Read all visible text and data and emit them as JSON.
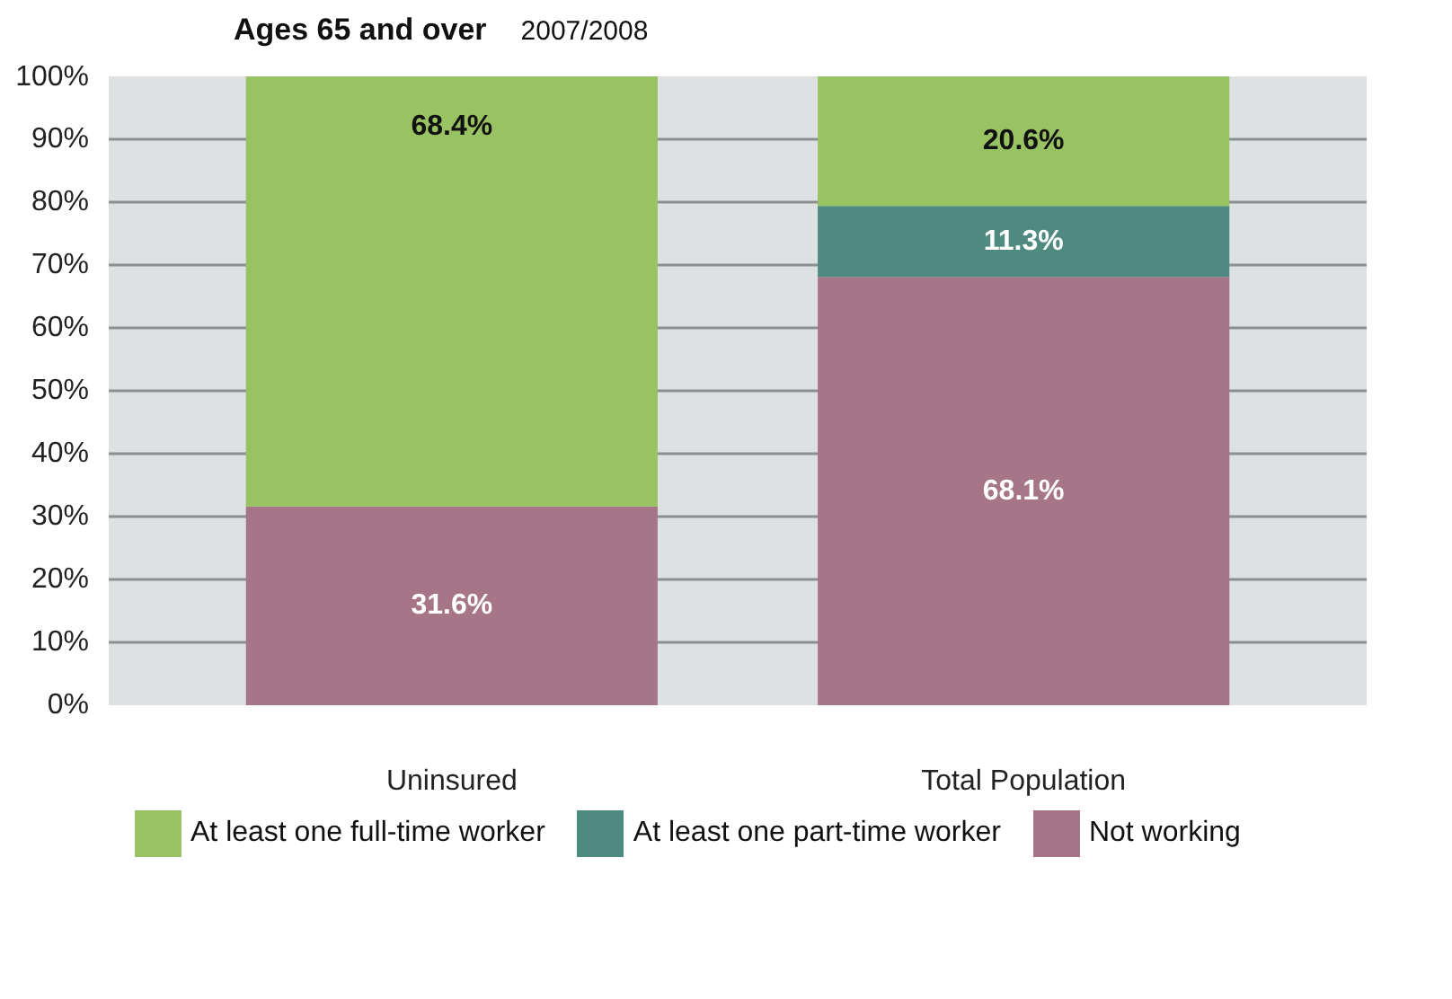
{
  "chart_data": {
    "type": "bar",
    "title": "Ages 65 and over",
    "subtitle": "2007/2008",
    "categories": [
      "Uninsured",
      "Total Population"
    ],
    "stacked": true,
    "ylim": [
      0,
      100
    ],
    "yticks": [
      {
        "value": 0,
        "label": "0%"
      },
      {
        "value": 10,
        "label": "10%"
      },
      {
        "value": 20,
        "label": "20%"
      },
      {
        "value": 30,
        "label": "30%"
      },
      {
        "value": 40,
        "label": "40%"
      },
      {
        "value": 50,
        "label": "50%"
      },
      {
        "value": 60,
        "label": "60%"
      },
      {
        "value": 70,
        "label": "70%"
      },
      {
        "value": 80,
        "label": "80%"
      },
      {
        "value": 90,
        "label": "90%"
      },
      {
        "value": 100,
        "label": "100%"
      }
    ],
    "grid": "y",
    "legend": "bottom",
    "series": [
      {
        "name": "Not working",
        "color": "#a67587",
        "values": [
          31.6,
          68.1
        ],
        "value_labels": [
          "31.6%",
          "68.1%"
        ]
      },
      {
        "name": "At least one part-time worker",
        "color": "#4e8a80",
        "values": [
          0,
          11.3
        ],
        "value_labels": [
          null,
          "11.3%"
        ]
      },
      {
        "name": "At least one full-time worker",
        "color": "#99c262",
        "values": [
          68.4,
          20.6
        ],
        "value_labels": [
          "68.4%",
          "20.6%"
        ]
      }
    ]
  }
}
